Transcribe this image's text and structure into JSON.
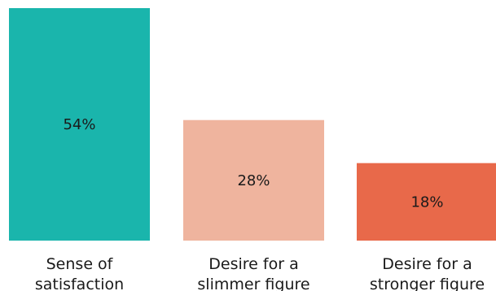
{
  "chart_data": {
    "type": "bar",
    "categories": [
      [
        "Sense of",
        "satisfaction"
      ],
      [
        "Desire for a",
        "slimmer figure"
      ],
      [
        "Desire for a",
        "stronger figure"
      ]
    ],
    "values": [
      54,
      28,
      18
    ],
    "value_labels": [
      "54%",
      "28%",
      "18%"
    ],
    "colors": [
      "#1ab5ac",
      "#efb49e",
      "#e8694a"
    ],
    "ylim": [
      0,
      54
    ],
    "grid": false
  }
}
